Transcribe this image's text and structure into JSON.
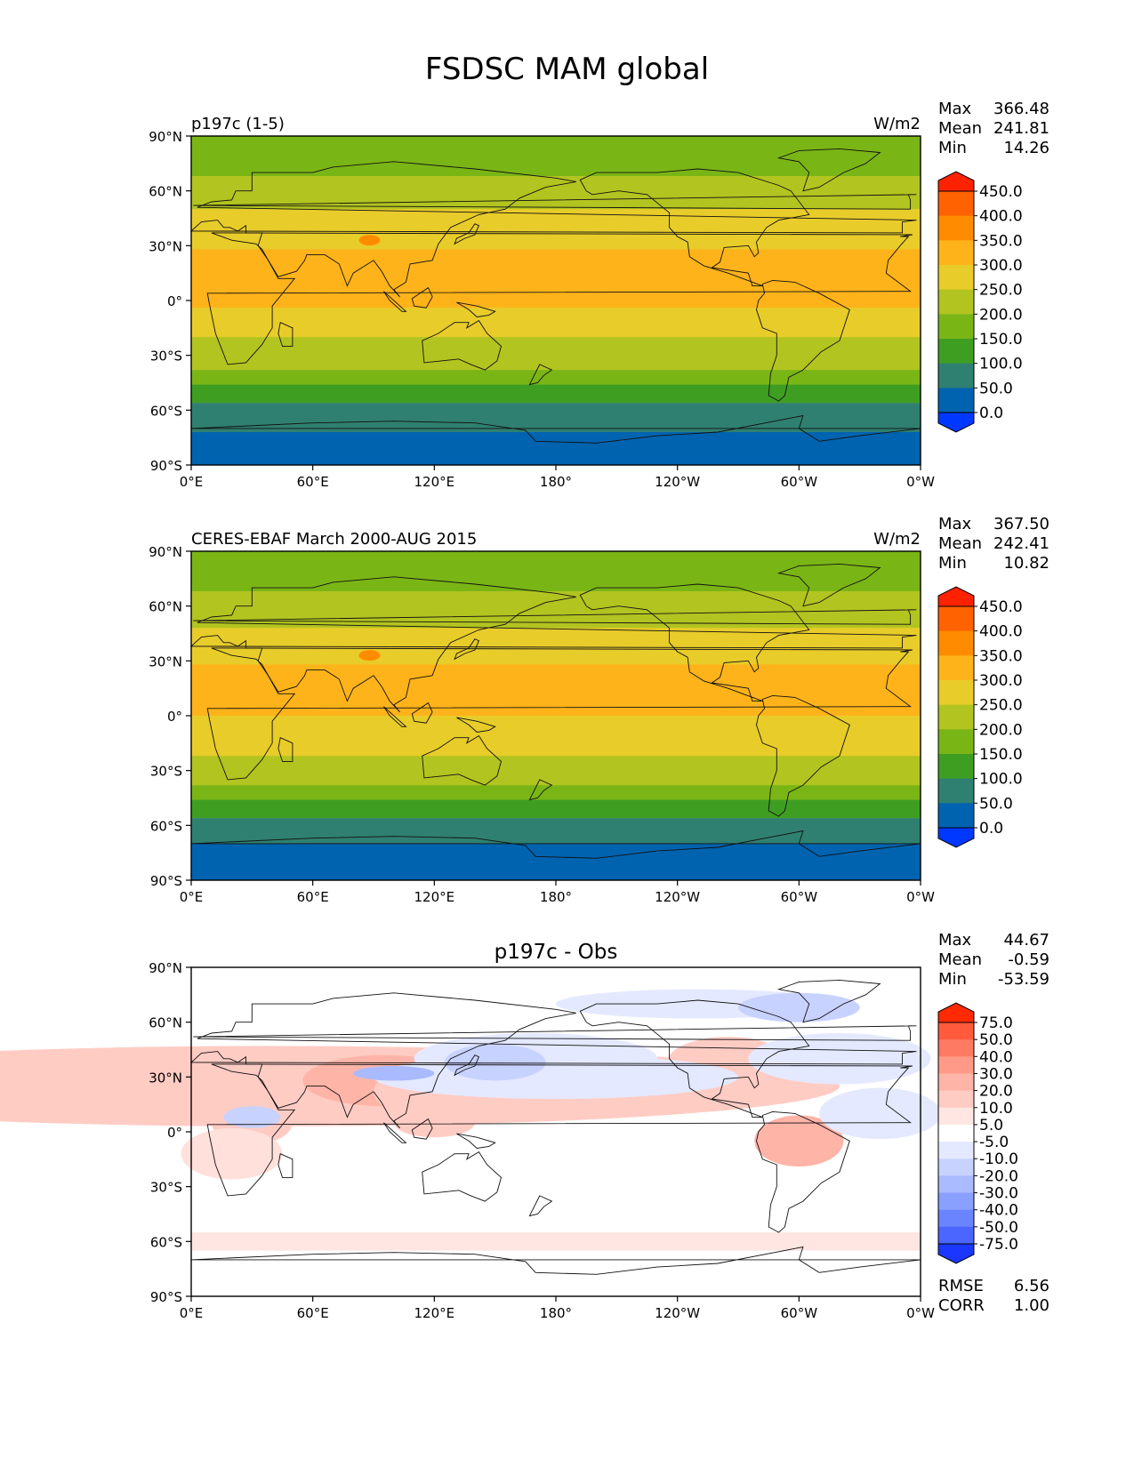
{
  "figure": {
    "title": "FSDSC MAM global"
  },
  "axes_ticks": {
    "lat": [
      "90°N",
      "60°N",
      "30°N",
      "0°",
      "30°S",
      "60°S",
      "90°S"
    ],
    "lon": [
      "0°E",
      "60°E",
      "120°E",
      "180°",
      "120°W",
      "60°W",
      "0°W"
    ]
  },
  "panels": [
    {
      "id": "model",
      "left_title": "p197c (1-5)",
      "center_title": "",
      "units": "W/m2",
      "stats": [
        {
          "label": "Max",
          "value": "366.48"
        },
        {
          "label": "Mean",
          "value": "241.81"
        },
        {
          "label": "Min",
          "value": "14.26"
        }
      ],
      "colorbar": {
        "levels": [
          "450.0",
          "400.0",
          "350.0",
          "300.0",
          "250.0",
          "200.0",
          "150.0",
          "100.0",
          "50.0",
          "0.0"
        ],
        "colors": [
          "#ff2200",
          "#ff6200",
          "#ff8c00",
          "#ffb31a",
          "#e8cc2a",
          "#b2c420",
          "#7ab516",
          "#3e9e22",
          "#2f8070",
          "#0063b0",
          "#0038ff"
        ]
      },
      "bands": [
        {
          "lat0": 90,
          "lat1": 68,
          "value": 175
        },
        {
          "lat0": 68,
          "lat1": 50,
          "value": 225
        },
        {
          "lat0": 50,
          "lat1": 28,
          "value": 275
        },
        {
          "lat0": 28,
          "lat1": -4,
          "value": 325
        },
        {
          "lat0": -4,
          "lat1": -20,
          "value": 275
        },
        {
          "lat0": -20,
          "lat1": -38,
          "value": 225
        },
        {
          "lat0": -38,
          "lat1": -46,
          "value": 175
        },
        {
          "lat0": -46,
          "lat1": -56,
          "value": 125
        },
        {
          "lat0": -56,
          "lat1": -72,
          "value": 75
        },
        {
          "lat0": -72,
          "lat1": -90,
          "value": 25
        }
      ]
    },
    {
      "id": "obs",
      "left_title": "CERES-EBAF March 2000-AUG 2015",
      "center_title": "",
      "units": "W/m2",
      "stats": [
        {
          "label": "Max",
          "value": "367.50"
        },
        {
          "label": "Mean",
          "value": "242.41"
        },
        {
          "label": "Min",
          "value": "10.82"
        }
      ],
      "colorbar": {
        "levels": [
          "450.0",
          "400.0",
          "350.0",
          "300.0",
          "250.0",
          "200.0",
          "150.0",
          "100.0",
          "50.0",
          "0.0"
        ],
        "colors": [
          "#ff2200",
          "#ff6200",
          "#ff8c00",
          "#ffb31a",
          "#e8cc2a",
          "#b2c420",
          "#7ab516",
          "#3e9e22",
          "#2f8070",
          "#0063b0",
          "#0038ff"
        ]
      },
      "bands": [
        {
          "lat0": 90,
          "lat1": 68,
          "value": 175
        },
        {
          "lat0": 68,
          "lat1": 48,
          "value": 225
        },
        {
          "lat0": 48,
          "lat1": 28,
          "value": 275
        },
        {
          "lat0": 28,
          "lat1": 0,
          "value": 325
        },
        {
          "lat0": 0,
          "lat1": -22,
          "value": 275
        },
        {
          "lat0": -22,
          "lat1": -38,
          "value": 225
        },
        {
          "lat0": -38,
          "lat1": -46,
          "value": 175
        },
        {
          "lat0": -46,
          "lat1": -56,
          "value": 125
        },
        {
          "lat0": -56,
          "lat1": -70,
          "value": 75
        },
        {
          "lat0": -70,
          "lat1": -90,
          "value": 25
        }
      ]
    },
    {
      "id": "diff",
      "left_title": "",
      "center_title": "p197c - Obs",
      "units": "",
      "stats": [
        {
          "label": "Max",
          "value": "44.67"
        },
        {
          "label": "Mean",
          "value": "-0.59"
        },
        {
          "label": "Min",
          "value": "-53.59"
        }
      ],
      "extra_stats": [
        {
          "label": "RMSE",
          "value": "6.56"
        },
        {
          "label": "CORR",
          "value": "1.00"
        }
      ],
      "colorbar": {
        "levels": [
          "75.0",
          "50.0",
          "40.0",
          "30.0",
          "20.0",
          "10.0",
          "5.0",
          "-5.0",
          "-10.0",
          "-20.0",
          "-30.0",
          "-40.0",
          "-50.0",
          "-75.0"
        ],
        "colors": [
          "#ff2a00",
          "#ff5a3c",
          "#ff7a62",
          "#ff9a88",
          "#ffb4a8",
          "#ffccc4",
          "#ffe6e2",
          "#ffffff",
          "#e4e9ff",
          "#c8d2ff",
          "#aabaff",
          "#8aa0ff",
          "#6a84ff",
          "#4a66ff",
          "#1a36ff"
        ]
      },
      "bands": [
        {
          "lat0": -55,
          "lat1": -65,
          "value": 7
        }
      ]
    }
  ]
}
